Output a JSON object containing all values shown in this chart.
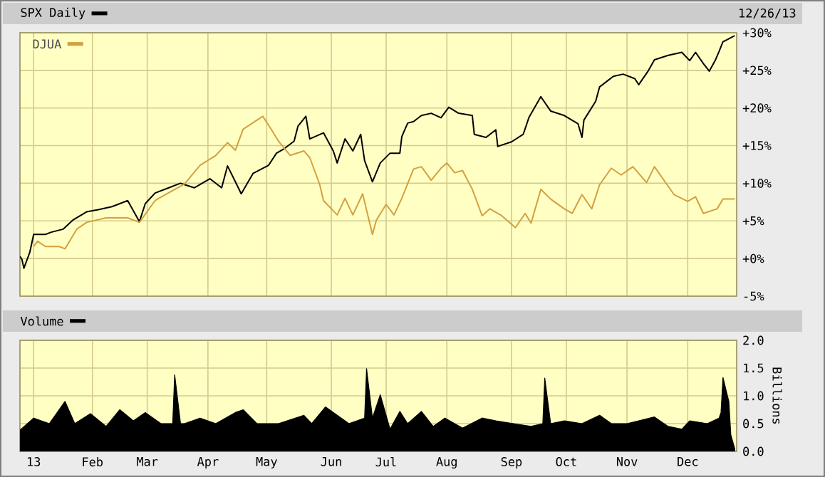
{
  "chart_data": [
    {
      "type": "line",
      "annotations": [
        "12/26/13"
      ],
      "legend": "top left",
      "grid": true,
      "tick_labels": "y",
      "xlim": [
        "2012-12-26",
        "2013-12-27"
      ],
      "ylim": [
        -5,
        30
      ],
      "xticks": [
        {
          "value": "2013-01-02",
          "label": null
        },
        {
          "value": "2013-02-01",
          "label": null
        },
        {
          "value": "2013-03-01",
          "label": null
        },
        {
          "value": "2013-04-01",
          "label": null
        },
        {
          "value": "2013-05-01",
          "label": null
        },
        {
          "value": "2013-06-03",
          "label": null
        },
        {
          "value": "2013-07-01",
          "label": null
        },
        {
          "value": "2013-08-01",
          "label": null
        },
        {
          "value": "2013-09-03",
          "label": null
        },
        {
          "value": "2013-10-01",
          "label": null
        },
        {
          "value": "2013-11-01",
          "label": null
        },
        {
          "value": "2013-12-02",
          "label": null
        }
      ],
      "yticks": [
        {
          "value": -5,
          "label": "-5%"
        },
        {
          "value": 0,
          "label": "+0%"
        },
        {
          "value": 5,
          "label": "+5%"
        },
        {
          "value": 10,
          "label": "+10%"
        },
        {
          "value": 15,
          "label": "+15%"
        },
        {
          "value": 20,
          "label": "+20%"
        },
        {
          "value": 25,
          "label": "+25%"
        },
        {
          "value": 30,
          "label": "+30%"
        }
      ],
      "series": [
        {
          "name": "SPX Daily",
          "color": "#000000",
          "x": [
            "2012-12-26",
            "2012-12-27",
            "2012-12-28",
            "2012-12-31",
            "2013-01-02",
            "2013-01-08",
            "2013-01-11",
            "2013-01-17",
            "2013-01-22",
            "2013-01-29",
            "2013-02-04",
            "2013-02-11",
            "2013-02-19",
            "2013-02-25",
            "2013-02-28",
            "2013-03-05",
            "2013-03-12",
            "2013-03-18",
            "2013-03-25",
            "2013-04-02",
            "2013-04-08",
            "2013-04-11",
            "2013-04-15",
            "2013-04-18",
            "2013-04-24",
            "2013-05-02",
            "2013-05-06",
            "2013-05-10",
            "2013-05-15",
            "2013-05-17",
            "2013-05-21",
            "2013-05-23",
            "2013-05-30",
            "2013-06-04",
            "2013-06-06",
            "2013-06-10",
            "2013-06-14",
            "2013-06-18",
            "2013-06-20",
            "2013-06-24",
            "2013-06-28",
            "2013-07-03",
            "2013-07-08",
            "2013-07-09",
            "2013-07-12",
            "2013-07-15",
            "2013-07-19",
            "2013-07-24",
            "2013-07-29",
            "2013-08-02",
            "2013-08-07",
            "2013-08-14",
            "2013-08-15",
            "2013-08-21",
            "2013-08-26",
            "2013-08-27",
            "2013-09-03",
            "2013-09-09",
            "2013-09-12",
            "2013-09-18",
            "2013-09-23",
            "2013-09-30",
            "2013-10-07",
            "2013-10-09",
            "2013-10-10",
            "2013-10-16",
            "2013-10-18",
            "2013-10-22",
            "2013-10-25",
            "2013-10-30",
            "2013-11-05",
            "2013-11-07",
            "2013-11-12",
            "2013-11-15",
            "2013-11-22",
            "2013-11-29",
            "2013-12-03",
            "2013-12-06",
            "2013-12-10",
            "2013-12-13",
            "2013-12-16",
            "2013-12-18",
            "2013-12-20",
            "2013-12-26"
          ],
          "values": [
            0.3,
            -0.1,
            -1.3,
            0.8,
            3.2,
            3.2,
            3.5,
            3.9,
            5.1,
            6.2,
            6.5,
            6.9,
            7.7,
            4.9,
            7.3,
            8.7,
            9.4,
            10.0,
            9.4,
            10.6,
            9.4,
            12.3,
            10.2,
            8.6,
            11.3,
            12.4,
            14.0,
            14.6,
            15.6,
            17.6,
            18.9,
            15.9,
            16.7,
            14.3,
            12.7,
            15.9,
            14.3,
            16.5,
            13.0,
            10.2,
            12.7,
            14.0,
            14.0,
            16.2,
            18.0,
            18.2,
            19.0,
            19.3,
            18.7,
            20.1,
            19.3,
            19.0,
            16.5,
            16.1,
            17.1,
            14.9,
            15.5,
            16.5,
            18.8,
            21.5,
            19.6,
            19.0,
            17.9,
            16.1,
            18.4,
            20.9,
            22.8,
            23.6,
            24.2,
            24.5,
            23.9,
            23.1,
            25.0,
            26.4,
            27.0,
            27.4,
            26.3,
            27.4,
            25.9,
            24.9,
            26.3,
            27.5,
            28.8,
            29.6
          ]
        },
        {
          "name": "DJUA",
          "color": "#d4a040",
          "x": [
            "2013-01-02",
            "2013-01-04",
            "2013-01-08",
            "2013-01-15",
            "2013-01-18",
            "2013-01-24",
            "2013-01-29",
            "2013-02-08",
            "2013-02-19",
            "2013-02-25",
            "2013-03-05",
            "2013-03-13",
            "2013-03-20",
            "2013-03-28",
            "2013-04-05",
            "2013-04-11",
            "2013-04-15",
            "2013-04-19",
            "2013-04-29",
            "2013-05-03",
            "2013-05-07",
            "2013-05-13",
            "2013-05-20",
            "2013-05-23",
            "2013-05-28",
            "2013-05-30",
            "2013-06-06",
            "2013-06-10",
            "2013-06-14",
            "2013-06-19",
            "2013-06-24",
            "2013-06-26",
            "2013-07-01",
            "2013-07-05",
            "2013-07-09",
            "2013-07-15",
            "2013-07-19",
            "2013-07-24",
            "2013-07-29",
            "2013-08-01",
            "2013-08-05",
            "2013-08-09",
            "2013-08-14",
            "2013-08-19",
            "2013-08-23",
            "2013-08-29",
            "2013-09-05",
            "2013-09-10",
            "2013-09-13",
            "2013-09-18",
            "2013-09-23",
            "2013-09-30",
            "2013-10-04",
            "2013-10-09",
            "2013-10-14",
            "2013-10-18",
            "2013-10-24",
            "2013-10-29",
            "2013-11-04",
            "2013-11-11",
            "2013-11-15",
            "2013-11-25",
            "2013-12-02",
            "2013-12-06",
            "2013-12-10",
            "2013-12-17",
            "2013-12-20",
            "2013-12-26"
          ],
          "values": [
            1.6,
            2.3,
            1.6,
            1.6,
            1.3,
            3.9,
            4.8,
            5.4,
            5.4,
            4.8,
            7.7,
            8.9,
            9.9,
            12.4,
            13.7,
            15.4,
            14.4,
            17.2,
            18.9,
            17.3,
            15.6,
            13.7,
            14.3,
            13.4,
            9.9,
            7.7,
            5.8,
            8.0,
            5.8,
            8.6,
            3.2,
            5.1,
            7.2,
            5.8,
            8.0,
            11.9,
            12.2,
            10.4,
            12.0,
            12.7,
            11.4,
            11.7,
            9.2,
            5.7,
            6.6,
            5.7,
            4.1,
            6.0,
            4.7,
            9.2,
            7.9,
            6.6,
            6.0,
            8.5,
            6.6,
            9.8,
            12.0,
            11.1,
            12.2,
            10.1,
            12.2,
            8.5,
            7.6,
            8.2,
            6.0,
            6.6,
            7.9,
            7.9
          ]
        }
      ]
    },
    {
      "type": "area",
      "legend": "top left",
      "grid": true,
      "ylabel": "Billions",
      "xlim": [
        "2012-12-26",
        "2013-12-27"
      ],
      "ylim": [
        0,
        2
      ],
      "xticks": [
        {
          "value": "2013-01-02",
          "label": "13"
        },
        {
          "value": "2013-02-01",
          "label": "Feb"
        },
        {
          "value": "2013-03-01",
          "label": "Mar"
        },
        {
          "value": "2013-04-01",
          "label": "Apr"
        },
        {
          "value": "2013-05-01",
          "label": "May"
        },
        {
          "value": "2013-06-03",
          "label": "Jun"
        },
        {
          "value": "2013-07-01",
          "label": "Jul"
        },
        {
          "value": "2013-08-01",
          "label": "Aug"
        },
        {
          "value": "2013-09-03",
          "label": "Sep"
        },
        {
          "value": "2013-10-01",
          "label": "Oct"
        },
        {
          "value": "2013-11-01",
          "label": "Nov"
        },
        {
          "value": "2013-12-02",
          "label": "Dec"
        }
      ],
      "yticks": [
        {
          "value": 0,
          "label": "0.0"
        },
        {
          "value": 0.5,
          "label": "0.5"
        },
        {
          "value": 1,
          "label": "1.0"
        },
        {
          "value": 1.5,
          "label": "1.5"
        },
        {
          "value": 2,
          "label": "2.0"
        }
      ],
      "x": [
        "2012-12-26",
        "2013-01-02",
        "2013-01-10",
        "2013-01-18",
        "2013-01-23",
        "2013-01-31",
        "2013-02-08",
        "2013-02-15",
        "2013-02-22",
        "2013-02-28",
        "2013-03-08",
        "2013-03-14",
        "2013-03-15",
        "2013-03-18",
        "2013-03-20",
        "2013-03-28",
        "2013-04-05",
        "2013-04-15",
        "2013-04-19",
        "2013-04-26",
        "2013-05-07",
        "2013-05-20",
        "2013-05-24",
        "2013-05-31",
        "2013-06-12",
        "2013-06-20",
        "2013-06-21",
        "2013-06-24",
        "2013-06-28",
        "2013-07-03",
        "2013-07-08",
        "2013-07-12",
        "2013-07-19",
        "2013-07-25",
        "2013-07-31",
        "2013-08-09",
        "2013-08-19",
        "2013-08-26",
        "2013-09-04",
        "2013-09-13",
        "2013-09-19",
        "2013-09-20",
        "2013-09-23",
        "2013-09-30",
        "2013-10-09",
        "2013-10-18",
        "2013-10-24",
        "2013-11-01",
        "2013-11-07",
        "2013-11-15",
        "2013-11-22",
        "2013-11-29",
        "2013-12-03",
        "2013-12-12",
        "2013-12-18",
        "2013-12-19",
        "2013-12-20",
        "2013-12-23",
        "2013-12-24",
        "2013-12-26"
      ],
      "series": [
        {
          "name": "Volume",
          "color": "#000000",
          "values": [
            0.38,
            0.6,
            0.5,
            0.9,
            0.5,
            0.68,
            0.45,
            0.75,
            0.55,
            0.7,
            0.5,
            0.5,
            1.38,
            0.5,
            0.5,
            0.6,
            0.5,
            0.7,
            0.75,
            0.5,
            0.5,
            0.65,
            0.5,
            0.8,
            0.5,
            0.6,
            1.49,
            0.6,
            1.02,
            0.4,
            0.72,
            0.5,
            0.72,
            0.45,
            0.6,
            0.42,
            0.6,
            0.55,
            0.5,
            0.45,
            0.5,
            1.32,
            0.5,
            0.55,
            0.5,
            0.65,
            0.5,
            0.5,
            0.55,
            0.62,
            0.45,
            0.4,
            0.55,
            0.5,
            0.6,
            0.7,
            1.33,
            0.9,
            0.3,
            0.05
          ]
        }
      ]
    }
  ]
}
